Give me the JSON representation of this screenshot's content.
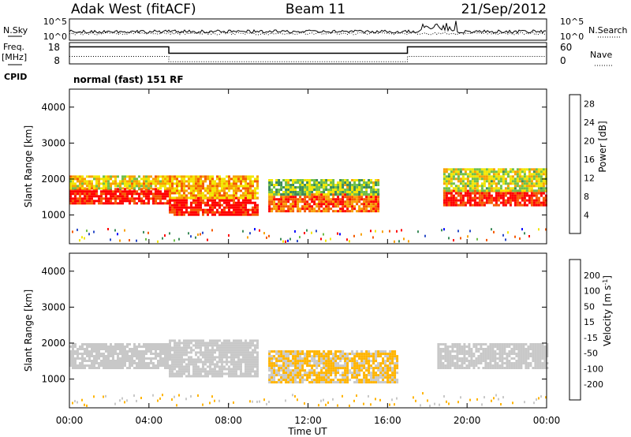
{
  "header": {
    "station": "Adak West (fitACF)",
    "beam": "Beam 11",
    "date": "21/Sep/2012"
  },
  "noise_panel": {
    "left_label": "N.Sky",
    "right_label": "N.Search",
    "ticks": [
      "10^5",
      "10^0"
    ]
  },
  "freq_panel": {
    "left_label_1": "Freq.",
    "left_label_2": "[MHz]",
    "left_ticks": [
      "18",
      "8"
    ],
    "right_label": "Nave",
    "right_ticks": [
      "60",
      "0"
    ]
  },
  "cpid": {
    "label": "CPID",
    "value": "normal (fast) 151 RF"
  },
  "colors": {
    "power_scale": [
      "#0000ff",
      "#2b4cc8",
      "#3c8c5a",
      "#6fbf4a",
      "#f2e600",
      "#f7a100",
      "#f55a00",
      "#ff0000"
    ],
    "velocity_scale": [
      "#ff0000",
      "#ff4a00",
      "#ff8c00",
      "#ffb400",
      "#c8c8c8",
      "#c8c8c8",
      "#7ad04a",
      "#2e8b57",
      "#2a6ab8",
      "#1a1ad0"
    ]
  },
  "chart_data": [
    {
      "type": "heatmap",
      "name": "Power",
      "ylabel": "Slant Range [km]",
      "y_ticks": [
        "1000",
        "2000",
        "3000",
        "4000"
      ],
      "colorbar_label": "Power [dB]",
      "colorbar_ticks": [
        "4",
        "8",
        "12",
        "16",
        "20",
        "24",
        "28"
      ],
      "x_ticks": [
        "00:00",
        "04:00",
        "08:00",
        "12:00",
        "16:00",
        "20:00",
        "00:00"
      ],
      "xlim_hours": [
        0,
        24
      ],
      "ylim_km": [
        200,
        4500
      ],
      "zlim": [
        0,
        30
      ],
      "regions": [
        {
          "t0": 0.0,
          "t1": 5.0,
          "r0": 1350,
          "r1": 1750,
          "z": 28
        },
        {
          "t0": 0.0,
          "t1": 5.0,
          "r0": 1750,
          "r1": 2100,
          "z": 18
        },
        {
          "t0": 5.0,
          "t1": 9.5,
          "r0": 1000,
          "r1": 1500,
          "z": 29
        },
        {
          "t0": 5.0,
          "t1": 9.5,
          "r0": 1500,
          "r1": 2100,
          "z": 20
        },
        {
          "t0": 10.0,
          "t1": 15.5,
          "r0": 1100,
          "r1": 1600,
          "z": 24
        },
        {
          "t0": 10.0,
          "t1": 15.5,
          "r0": 1600,
          "r1": 2000,
          "z": 14
        },
        {
          "t0": 18.8,
          "t1": 24.0,
          "r0": 1300,
          "r1": 1700,
          "z": 28
        },
        {
          "t0": 18.8,
          "t1": 24.0,
          "r0": 1700,
          "r1": 2300,
          "z": 16
        }
      ]
    },
    {
      "type": "heatmap",
      "name": "Velocity",
      "ylabel": "Slant Range [km]",
      "y_ticks": [
        "1000",
        "2000",
        "3000",
        "4000"
      ],
      "colorbar_label": "Velocity [m s^-1]",
      "colorbar_ticks": [
        "200",
        "100",
        "50",
        "15",
        "-15",
        "-50",
        "-100",
        "-200"
      ],
      "x_ticks": [
        "00:00",
        "04:00",
        "08:00",
        "12:00",
        "16:00",
        "20:00",
        "00:00"
      ],
      "xlabel": "Time UT",
      "xlim_hours": [
        0,
        24
      ],
      "ylim_km": [
        200,
        4500
      ],
      "zlim": [
        -250,
        250
      ],
      "regions": [
        {
          "t0": 0.0,
          "t1": 5.0,
          "r0": 1300,
          "r1": 2000,
          "z": 0
        },
        {
          "t0": 5.0,
          "t1": 9.5,
          "r0": 1100,
          "r1": 2100,
          "z": 0
        },
        {
          "t0": 10.0,
          "t1": 16.5,
          "r0": 900,
          "r1": 1800,
          "z": -60
        },
        {
          "t0": 18.5,
          "t1": 24.0,
          "r0": 1300,
          "r1": 2000,
          "z": 0
        }
      ]
    }
  ]
}
